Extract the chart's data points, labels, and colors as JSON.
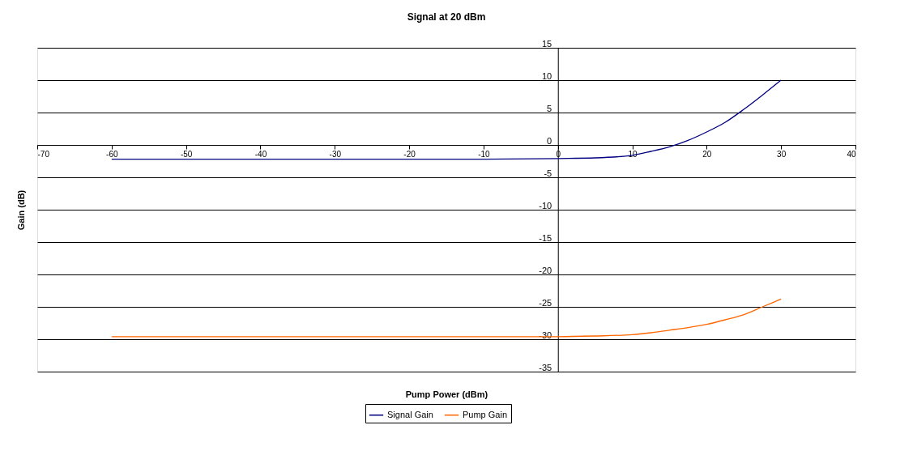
{
  "chart_data": {
    "type": "line",
    "title": "Signal at 20 dBm",
    "xlabel": "Pump Power (dBm)",
    "ylabel": "Gain (dB)",
    "x": [
      -60,
      -50,
      -40,
      -30,
      -20,
      -10,
      0,
      5,
      10,
      12.5,
      15,
      17.5,
      20,
      22.5,
      25,
      27.5,
      30
    ],
    "series": [
      {
        "name": "Signal Gain",
        "color": "#000080",
        "values": [
          -2.2,
          -2.2,
          -2.2,
          -2.2,
          -2.2,
          -2.2,
          -2.1,
          -2.0,
          -1.6,
          -1.0,
          -0.3,
          0.7,
          2.0,
          3.5,
          5.5,
          7.7,
          10
        ]
      },
      {
        "name": "Pump Gain",
        "color": "#ff6600",
        "values": [
          -29.6,
          -29.6,
          -29.6,
          -29.6,
          -29.6,
          -29.6,
          -29.6,
          -29.5,
          -29.3,
          -29.0,
          -28.6,
          -28.2,
          -27.7,
          -27.0,
          -26.2,
          -25.0,
          -23.8
        ]
      }
    ],
    "xlim": [
      -70,
      40
    ],
    "xticks": [
      -70,
      -60,
      -50,
      -40,
      -30,
      -20,
      -10,
      0,
      10,
      20,
      30,
      40
    ],
    "ylim": [
      -35,
      15
    ],
    "yticks": [
      -35,
      -30,
      -25,
      -20,
      -15,
      -10,
      -5,
      0,
      5,
      10,
      15
    ],
    "grid": "y",
    "legend": "bottom",
    "marker": "none",
    "line_style": "solid"
  }
}
